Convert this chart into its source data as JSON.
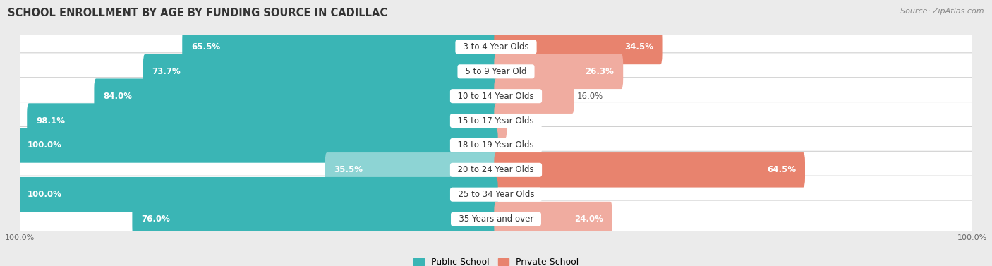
{
  "title": "SCHOOL ENROLLMENT BY AGE BY FUNDING SOURCE IN CADILLAC",
  "source": "Source: ZipAtlas.com",
  "categories": [
    "3 to 4 Year Olds",
    "5 to 9 Year Old",
    "10 to 14 Year Olds",
    "15 to 17 Year Olds",
    "18 to 19 Year Olds",
    "20 to 24 Year Olds",
    "25 to 34 Year Olds",
    "35 Years and over"
  ],
  "public_values": [
    65.5,
    73.7,
    84.0,
    98.1,
    100.0,
    35.5,
    100.0,
    76.0
  ],
  "private_values": [
    34.5,
    26.3,
    16.0,
    1.9,
    0.0,
    64.5,
    0.0,
    24.0
  ],
  "public_color_dark": "#3ab5b5",
  "public_color_light": "#8dd4d4",
  "private_color_dark": "#e8836e",
  "private_color_light": "#f0aca0",
  "bg_color": "#ebebeb",
  "row_bg_color": "#ffffff",
  "row_border_color": "#d0d0d0",
  "title_fontsize": 10.5,
  "label_fontsize": 8.5,
  "cat_fontsize": 8.5,
  "tick_fontsize": 8,
  "legend_fontsize": 9,
  "source_fontsize": 8
}
